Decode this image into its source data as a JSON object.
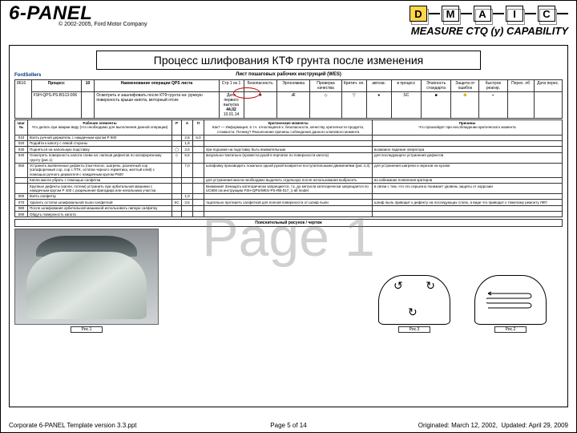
{
  "brand": "6-PANEL",
  "copyright": "© 2002-2005, Ford Motor Company",
  "dmaic": [
    "D",
    "M",
    "A",
    "I",
    "C"
  ],
  "dmaic_active_index": 0,
  "measure_label": "MEASURE CTQ (y) CAPABILITY",
  "title": "Процесс шлифования КТФ грунта после изменения",
  "doc_logo": "FordSollers",
  "doc_title": "Лист пошаговых рабочих инструкций (WES)",
  "meta": {
    "number": "8616",
    "process_label": "Процесс",
    "process": "FSH-QPS-PS-BS13-006",
    "col2_label": "Наименование операции QPS листа",
    "col2": "10",
    "op_text": "Осмотреть и зашлифовать после КТФ грунта на- ружную поверхность крыши капота, моторный отсек",
    "small": "Cтр 1 из 1",
    "date_label": "Дата первого выпуска",
    "date": "44,02",
    "date2": "10.01.14",
    "c_safety": "Безопасность",
    "c_ergo": "Эргономика",
    "c_qual": "Проверка качества",
    "c_crit": "Критич. оп.",
    "c_auto": "автоза-",
    "c_proc": "в процесс",
    "c_std": "Этапность стандарта",
    "c_meas": "Защита от ошибок",
    "c_fast": "быстрое реагир.",
    "c_rev": "Перех. лб",
    "c_rev2": "Дата перес."
  },
  "circled_value": "44,02",
  "columns": {
    "step": "Шаг №",
    "elements": "Рабочие элементы",
    "elements_sub": "Что делать при аварии ввду (что необходимо для выполнения данной операции)",
    "r": "Р",
    "a": "А",
    "p": "П",
    "crit": "Критические моменты",
    "crit_sub": "Как? — Информация, в т.ч. относящаяся к: безопасности, качеству, критичности продукта, стоимости. Почему? Разъяснение причины соблюдения данного ключевого момента",
    "reason": "Причины",
    "reason_sub": "Что произойдет при несоблюдении критического момента"
  },
  "rows": [
    {
      "n": "010",
      "el": "Взять ручной держатель с наждачным кругом Р 500",
      "r": "",
      "a": "2,8",
      "p": "6,0",
      "crit": "",
      "reason": ""
    },
    {
      "n": "020",
      "el": "Подойти к капоту с левой стороны",
      "r": "",
      "a": "1,8",
      "p": "",
      "crit": "",
      "reason": ""
    },
    {
      "n": "030",
      "el": "Подняться на напольную подставку",
      "r": "◯",
      "a": "3,5",
      "p": "",
      "crit": "при подъеме на подставку быть внимательным",
      "reason": "возможно падение оператора"
    },
    {
      "n": "040",
      "el": "Осмотреть поверхность капота слева на: наплыв дефектов по катафорезному грунту (рис.1)",
      "r": "◇",
      "a": "5,5",
      "p": "",
      "crit": "визуально-тактильно (провести рукой в перчатке по поверхности капота)",
      "reason": "для последующего устранения дефектов"
    },
    {
      "n": "050",
      "el": "Устранить выявленные дефекты (пыл-волос, шагрень, различный сор (катафорезный сор, сор с ПТК, остатки черного герметика, желтый клей) с помощью ручного держателя с наждачным кругом Р500",
      "r": "",
      "a": "7,0",
      "p": "",
      "crit": "шлифовку производить локально одной рукой возвратно-поступательными движениями (рис 2,3)",
      "reason": "для устранения шагрени и зерезов на кузове"
    },
    {
      "n": "",
      "el": "Капли масла убрать с помощью салфетки",
      "r": "",
      "a": "",
      "p": "",
      "crit": "для устранения масла необходимо выделить отдельную после использования выбросить",
      "reason": "во избежание появления кратеров"
    },
    {
      "n": "",
      "el": "Крупные дефекты (капли, потеки) устранить при орбитальной машинки с наждачным кругом Р 400 с разрешения бригадира или начальника участка",
      "r": "",
      "a": "",
      "p": "",
      "crit": "Внимание! Зачищать категорически запрещается, т.к. до металла категорически запрещается по UC800 см инструкцию FSH-QPS/WES-PS-RB-017_1-all model",
      "reason": "в связи с тем, что это серьезно понижает уровень защиты от коррозии"
    },
    {
      "n": "060",
      "el": "Взять салфетку",
      "r": "",
      "a": "1,0",
      "p": "",
      "crit": "",
      "reason": ""
    },
    {
      "n": "070",
      "el": "Удалить остатки шлифовальной пыли салфеткой",
      "r": "SC",
      "a": "3,5",
      "p": "",
      "crit": "тщательно протереть салфеткой для полной поверхности от шлиф пыли",
      "reason": "шлиф пыль приводит к дефекту на последующих слоях, а виде что приводит к тяжелому ремонту ЛКП"
    },
    {
      "n": "080",
      "el": "После шлифования орбитальной машинкой использовать липкую салфетку",
      "r": "",
      "a": "",
      "p": "",
      "crit": "",
      "reason": ""
    },
    {
      "n": "090",
      "el": "Обдуть поверхность капота",
      "r": "",
      "a": "",
      "p": "",
      "crit": "",
      "reason": ""
    }
  ],
  "drawings_header": "Пояснительный рисунок / чертеж",
  "captions": {
    "photo": "Рис.1",
    "s2": "Рис.2",
    "s3": "Рис.3"
  },
  "watermark": "Page 1",
  "footer": {
    "left": "Corporate 6-PANEL Template version 3.3.ppt",
    "center_prefix": "Page ",
    "page": "5",
    "center_mid": " of ",
    "total": "14",
    "right1": "Originated: March 12, 2002,",
    "right2": "Updated: April 29, 2009"
  },
  "colors": {
    "accent": "#ffd54a",
    "red": "#c00"
  }
}
